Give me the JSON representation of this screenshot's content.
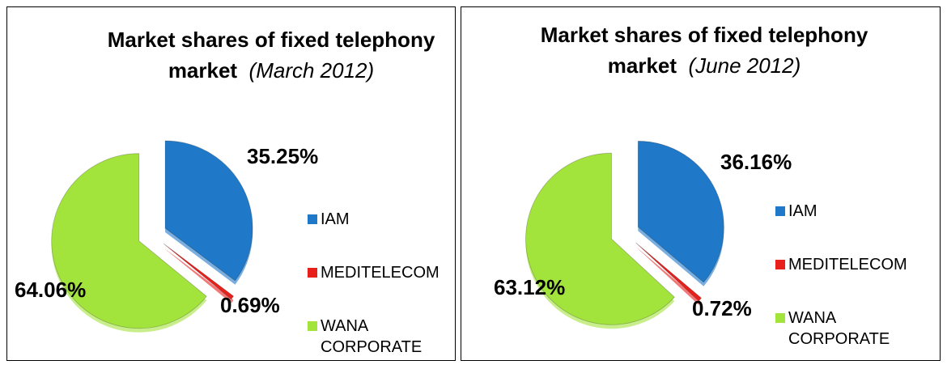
{
  "chart_data": [
    {
      "type": "pie",
      "title": "Market shares of fixed telephony market",
      "subtitle": "(March 2012)",
      "categories": [
        "IAM",
        "MEDITELECOM",
        "WANA CORPORATE"
      ],
      "values": [
        35.25,
        0.69,
        64.06
      ],
      "value_labels": [
        "35.25%",
        "0.69%",
        "64.06%"
      ],
      "colors": [
        "#1f78c8",
        "#e8201c",
        "#a2e33c"
      ]
    },
    {
      "type": "pie",
      "title": "Market shares of fixed telephony market",
      "subtitle": "(June 2012)",
      "categories": [
        "IAM",
        "MEDITELECOM",
        "WANA CORPORATE"
      ],
      "values": [
        36.16,
        0.72,
        63.12
      ],
      "value_labels": [
        "36.16%",
        "0.72%",
        "63.12%"
      ],
      "colors": [
        "#1f78c8",
        "#e8201c",
        "#a2e33c"
      ]
    }
  ]
}
